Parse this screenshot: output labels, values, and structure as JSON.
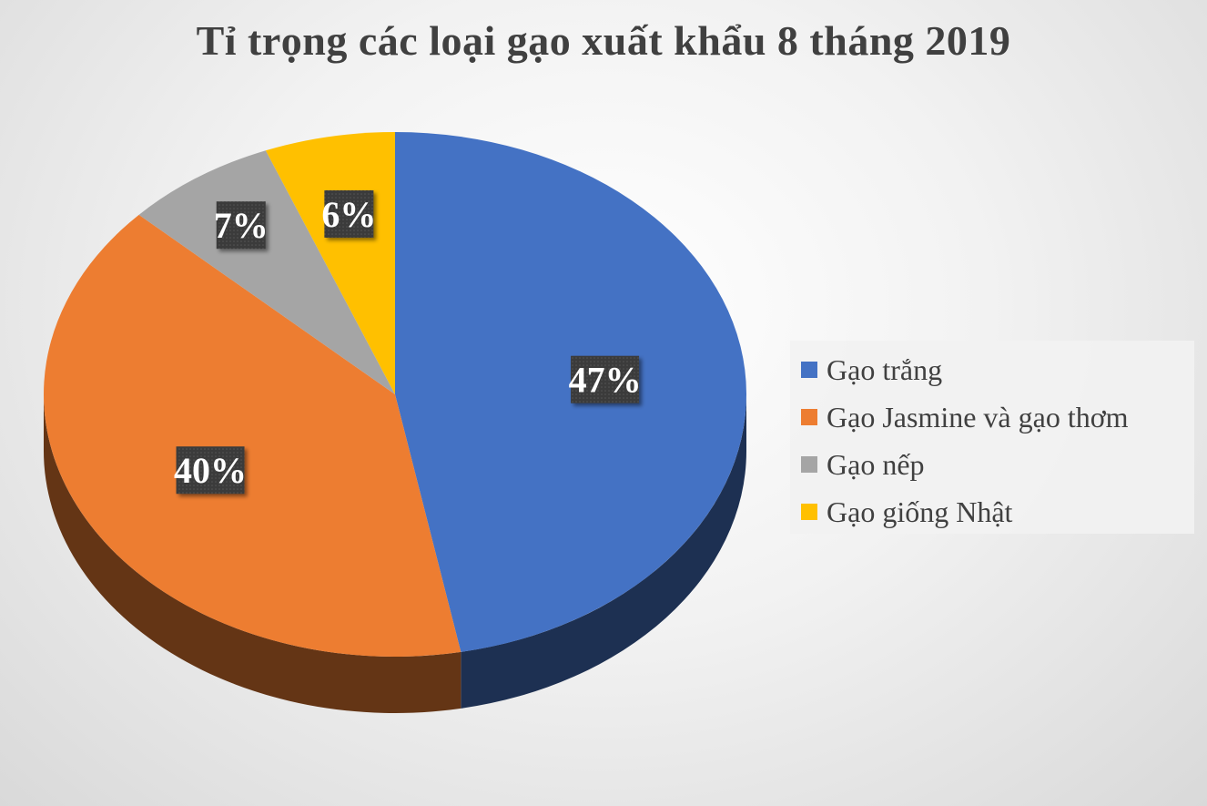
{
  "chart_data": {
    "type": "pie",
    "title": "Tỉ trọng các loại gạo xuất khẩu 8 tháng 2019",
    "categories": [
      "Gạo trắng",
      "Gạo Jasmine và gạo thơm",
      "Gạo nếp",
      "Gạo giống Nhật"
    ],
    "values": [
      47,
      40,
      7,
      6
    ],
    "data_labels": [
      "47%",
      "40%",
      "7%",
      "6%"
    ],
    "colors": [
      "#4472C4",
      "#ED7D31",
      "#A5A5A5",
      "#FFC000"
    ],
    "legend_position": "right",
    "style": "3d"
  }
}
